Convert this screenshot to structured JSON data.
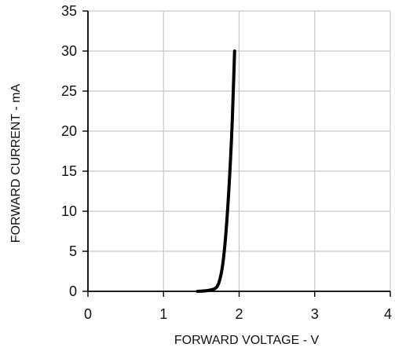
{
  "chart_data": {
    "type": "line",
    "title": "",
    "xlabel": "FORWARD VOLTAGE - V",
    "ylabel": "FORWARD CURRENT  -  mA",
    "xlim": [
      0,
      4
    ],
    "ylim": [
      0,
      35
    ],
    "grid": true,
    "x_ticks": [
      0,
      1,
      2,
      3,
      4
    ],
    "y_ticks": [
      0,
      5,
      10,
      15,
      20,
      25,
      30,
      35
    ],
    "x_tick_labels": [
      "0",
      "1",
      "2",
      "3",
      "4"
    ],
    "y_tick_labels": [
      "0",
      "5",
      "10",
      "15",
      "20",
      "25",
      "30",
      "35"
    ],
    "series": [
      {
        "x": [
          1.45,
          1.55,
          1.62,
          1.68,
          1.72,
          1.75,
          1.78,
          1.81,
          1.84,
          1.87,
          1.9,
          1.92,
          1.94
        ],
        "y": [
          0,
          0.05,
          0.15,
          0.3,
          0.7,
          1.6,
          3.0,
          5.5,
          9.0,
          13.5,
          19.0,
          24.0,
          30.0
        ],
        "color": "#000000"
      }
    ]
  }
}
